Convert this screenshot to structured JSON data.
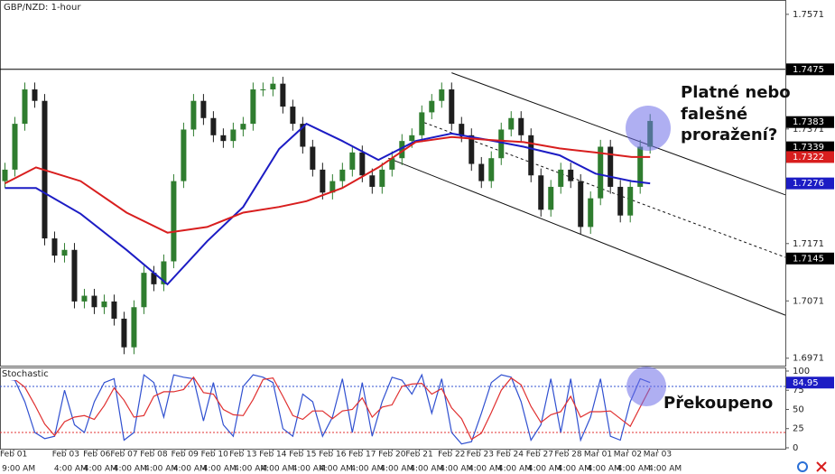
{
  "chart_data": [
    {
      "type": "candlestick",
      "title": "GBP/NZD: 1-hour",
      "up_color": "#2f7d2f",
      "down_color": "#1e1e1e",
      "xlim": [
        0,
        633
      ],
      "ylim": [
        1.6958,
        1.7596
      ],
      "yticks": [
        1.7571,
        1.7371,
        1.7171,
        1.7071,
        1.6971
      ],
      "x": [
        4,
        12,
        20,
        28,
        36,
        44,
        52,
        60,
        68,
        76,
        84,
        92,
        100,
        108,
        116,
        124,
        132,
        140,
        148,
        156,
        164,
        172,
        180,
        188,
        196,
        204,
        212,
        220,
        228,
        236,
        244,
        252,
        260,
        268,
        276,
        284,
        292,
        300,
        308,
        316,
        324,
        332,
        340,
        348,
        356,
        364,
        372,
        380,
        388,
        396,
        404,
        412,
        420,
        428,
        436,
        444,
        452,
        460,
        468,
        476,
        484,
        492,
        500,
        508,
        516,
        524
      ],
      "open": [
        1.728,
        1.73,
        1.738,
        1.744,
        1.742,
        1.718,
        1.715,
        1.716,
        1.707,
        1.708,
        1.706,
        1.707,
        1.704,
        1.699,
        1.706,
        1.712,
        1.71,
        1.714,
        1.728,
        1.737,
        1.742,
        1.739,
        1.736,
        1.735,
        1.737,
        1.738,
        1.744,
        1.744,
        1.745,
        1.741,
        1.738,
        1.734,
        1.73,
        1.726,
        1.728,
        1.73,
        1.733,
        1.729,
        1.727,
        1.73,
        1.732,
        1.735,
        1.736,
        1.74,
        1.742,
        1.744,
        1.738,
        1.736,
        1.731,
        1.728,
        1.732,
        1.737,
        1.739,
        1.736,
        1.729,
        1.723,
        1.727,
        1.73,
        1.728,
        1.72,
        1.725,
        1.734,
        1.727,
        1.722,
        1.727,
        1.734
      ],
      "high": [
        1.7312,
        1.7392,
        1.7452,
        1.7452,
        1.7432,
        1.7192,
        1.7172,
        1.7172,
        1.7092,
        1.7092,
        1.7082,
        1.7082,
        1.7052,
        1.7072,
        1.7132,
        1.7132,
        1.7152,
        1.7292,
        1.7382,
        1.7432,
        1.7432,
        1.7402,
        1.7372,
        1.7382,
        1.7392,
        1.7452,
        1.7452,
        1.7462,
        1.7462,
        1.7422,
        1.7392,
        1.7352,
        1.7312,
        1.7292,
        1.7312,
        1.7342,
        1.7342,
        1.7302,
        1.7312,
        1.7332,
        1.7362,
        1.7372,
        1.7412,
        1.7432,
        1.7452,
        1.7452,
        1.7392,
        1.7372,
        1.7322,
        1.7332,
        1.7382,
        1.7402,
        1.7402,
        1.7372,
        1.7302,
        1.7282,
        1.7312,
        1.7312,
        1.7292,
        1.7262,
        1.7352,
        1.7352,
        1.7282,
        1.7282,
        1.7352,
        1.7397
      ],
      "low": [
        1.7268,
        1.7288,
        1.7368,
        1.7408,
        1.7168,
        1.7138,
        1.7138,
        1.7058,
        1.7058,
        1.7048,
        1.7048,
        1.7028,
        1.6978,
        1.6978,
        1.7048,
        1.7088,
        1.7088,
        1.7128,
        1.7268,
        1.7358,
        1.7378,
        1.7348,
        1.7338,
        1.7338,
        1.7358,
        1.7368,
        1.7428,
        1.7428,
        1.7398,
        1.7368,
        1.7328,
        1.7288,
        1.7248,
        1.7248,
        1.7268,
        1.7288,
        1.7278,
        1.7258,
        1.7258,
        1.7288,
        1.7308,
        1.7338,
        1.7348,
        1.7388,
        1.7408,
        1.7368,
        1.7348,
        1.7298,
        1.7268,
        1.7268,
        1.7308,
        1.7358,
        1.7348,
        1.7278,
        1.7218,
        1.7218,
        1.7258,
        1.7268,
        1.7188,
        1.7188,
        1.7238,
        1.7258,
        1.7208,
        1.7208,
        1.7258,
        1.7328
      ],
      "close": [
        1.73,
        1.738,
        1.744,
        1.742,
        1.718,
        1.715,
        1.716,
        1.707,
        1.708,
        1.706,
        1.707,
        1.704,
        1.699,
        1.706,
        1.712,
        1.71,
        1.714,
        1.728,
        1.737,
        1.742,
        1.739,
        1.736,
        1.735,
        1.737,
        1.738,
        1.744,
        1.744,
        1.745,
        1.741,
        1.738,
        1.734,
        1.73,
        1.726,
        1.728,
        1.73,
        1.733,
        1.729,
        1.727,
        1.73,
        1.732,
        1.735,
        1.736,
        1.74,
        1.742,
        1.744,
        1.738,
        1.736,
        1.731,
        1.728,
        1.732,
        1.737,
        1.739,
        1.736,
        1.729,
        1.723,
        1.727,
        1.73,
        1.728,
        1.72,
        1.725,
        1.734,
        1.727,
        1.722,
        1.727,
        1.734,
        1.7385
      ],
      "series": [
        {
          "color": "#1c1cc4",
          "x": [
            4,
            29,
            65,
            102,
            135,
            167,
            196,
            225,
            247,
            276,
            305,
            335,
            364,
            393,
            422,
            451,
            480,
            509,
            524
          ],
          "values": [
            1.7268,
            1.7268,
            1.7223,
            1.716,
            1.71,
            1.7175,
            1.7235,
            1.7336,
            1.738,
            1.735,
            1.7317,
            1.735,
            1.7363,
            1.7352,
            1.734,
            1.7325,
            1.7293,
            1.728,
            1.7276
          ]
        },
        {
          "color": "#d81e1e",
          "x": [
            4,
            29,
            65,
            102,
            135,
            167,
            196,
            225,
            247,
            276,
            305,
            335,
            364,
            393,
            422,
            451,
            480,
            509,
            524
          ],
          "values": [
            1.7276,
            1.7304,
            1.728,
            1.7225,
            1.719,
            1.72,
            1.7225,
            1.7235,
            1.7245,
            1.7268,
            1.7304,
            1.7348,
            1.7357,
            1.7352,
            1.7348,
            1.7337,
            1.733,
            1.7322,
            1.7322
          ]
        }
      ],
      "hlines": [
        1.7475
      ],
      "trendlines": [
        {
          "x": [
            364,
            633
          ],
          "y": [
            1.7469,
            1.7256
          ],
          "dashed": false
        },
        {
          "x": [
            342,
            633
          ],
          "y": [
            1.7382,
            1.7147
          ],
          "dashed": true
        },
        {
          "x": [
            313,
            633
          ],
          "y": [
            1.732,
            1.7046
          ],
          "dashed": false
        }
      ],
      "price_markers": [
        {
          "value": 1.7475,
          "color": "#000000"
        },
        {
          "value": 1.7383,
          "color": "#000000"
        },
        {
          "value": 1.7339,
          "color": "#000000"
        },
        {
          "value": 1.7322,
          "color": "#d81e1e"
        },
        {
          "value": 1.7276,
          "color": "#1c1cc4"
        },
        {
          "value": 1.7145,
          "color": "#000000"
        }
      ],
      "annotations": [
        "Platné nebo",
        "falešné",
        "proražení?"
      ]
    },
    {
      "type": "line",
      "title": "Stochastic",
      "xlim": [
        0,
        633
      ],
      "ylim": [
        -1.2,
        103.5
      ],
      "yticks": [
        100,
        75,
        50,
        25,
        0
      ],
      "x": [
        4,
        12,
        20,
        28,
        36,
        44,
        52,
        60,
        68,
        76,
        84,
        92,
        100,
        108,
        116,
        124,
        132,
        140,
        148,
        156,
        164,
        172,
        180,
        188,
        196,
        204,
        212,
        220,
        228,
        236,
        244,
        252,
        260,
        268,
        276,
        284,
        292,
        300,
        308,
        316,
        324,
        332,
        340,
        348,
        356,
        364,
        372,
        380,
        388,
        396,
        404,
        412,
        420,
        428,
        436,
        444,
        452,
        460,
        468,
        476,
        484,
        492,
        500,
        508,
        516,
        524
      ],
      "series": [
        {
          "color": "#3050d0",
          "values": [
            90,
            88,
            60,
            20,
            12,
            15,
            75,
            30,
            20,
            60,
            85,
            90,
            10,
            20,
            95,
            85,
            40,
            95,
            92,
            90,
            35,
            85,
            30,
            15,
            80,
            95,
            92,
            85,
            25,
            15,
            70,
            60,
            15,
            40,
            90,
            20,
            85,
            15,
            60,
            92,
            88,
            70,
            95,
            45,
            90,
            20,
            5,
            8,
            45,
            85,
            95,
            92,
            60,
            10,
            30,
            90,
            20,
            90,
            10,
            40,
            90,
            15,
            10,
            60,
            90,
            85
          ]
        },
        {
          "color": "#e03030",
          "values": [
            90,
            89,
            79,
            56,
            31,
            16,
            34,
            40,
            42,
            37,
            55,
            78,
            62,
            40,
            42,
            67,
            73,
            73,
            76,
            92,
            72,
            70,
            50,
            43,
            42,
            63,
            89,
            91,
            67,
            42,
            37,
            48,
            48,
            38,
            48,
            50,
            65,
            40,
            53,
            56,
            80,
            83,
            84,
            70,
            77,
            52,
            38,
            11,
            19,
            46,
            75,
            91,
            82,
            54,
            33,
            43,
            47,
            67,
            40,
            47,
            47,
            48,
            38,
            28,
            53,
            78
          ]
        }
      ],
      "levels": [
        {
          "value": 80,
          "color": "#3050d0"
        },
        {
          "value": 20,
          "color": "#e03030"
        }
      ],
      "price_markers": [
        {
          "value": 84.95,
          "color": "#1c1cc4"
        }
      ],
      "annotations": [
        "Překoupeno"
      ],
      "xticks": [
        {
          "value": 11,
          "label": "Feb 01"
        },
        {
          "value": 53,
          "label": "Feb 03"
        },
        {
          "value": 78,
          "label": "Feb 06"
        },
        {
          "value": 100,
          "label": "Feb 07"
        },
        {
          "value": 124,
          "label": "Feb 08"
        },
        {
          "value": 149,
          "label": "Feb 09"
        },
        {
          "value": 173,
          "label": "Feb 10"
        },
        {
          "value": 196,
          "label": "Feb 13"
        },
        {
          "value": 220,
          "label": "Feb 14"
        },
        {
          "value": 244,
          "label": "Feb 15"
        },
        {
          "value": 268,
          "label": "Feb 16"
        },
        {
          "value": 292,
          "label": "Feb 17"
        },
        {
          "value": 316,
          "label": "Feb 20"
        },
        {
          "value": 338,
          "label": "Feb 21"
        },
        {
          "value": 364,
          "label": "Feb 22"
        },
        {
          "value": 387,
          "label": "Feb 23"
        },
        {
          "value": 411,
          "label": "Feb 24"
        },
        {
          "value": 435,
          "label": "Feb 27"
        },
        {
          "value": 458,
          "label": "Feb 28"
        },
        {
          "value": 482,
          "label": "Mar 01"
        },
        {
          "value": 506,
          "label": "Mar 02"
        },
        {
          "value": 530,
          "label": "Mar 03"
        }
      ],
      "xticks2": [
        {
          "value": 15,
          "label": "9:00 AM"
        },
        {
          "value": 57,
          "label": "4:00 AM"
        },
        {
          "value": 81,
          "label": "4:00 AM"
        },
        {
          "value": 105,
          "label": "4:00 AM"
        },
        {
          "value": 130,
          "label": "4:00 AM"
        },
        {
          "value": 153,
          "label": "4:00 AM"
        },
        {
          "value": 177,
          "label": "4:00 AM"
        },
        {
          "value": 202,
          "label": "4:00 AM"
        },
        {
          "value": 224,
          "label": "4:00 AM"
        },
        {
          "value": 249,
          "label": "4:00 AM"
        },
        {
          "value": 271,
          "label": "4:00 AM"
        },
        {
          "value": 296,
          "label": "4:00 AM"
        },
        {
          "value": 320,
          "label": "4:00 AM"
        },
        {
          "value": 344,
          "label": "4:00 AM"
        },
        {
          "value": 368,
          "label": "4:00 AM"
        },
        {
          "value": 391,
          "label": "4:00 AM"
        },
        {
          "value": 415,
          "label": "4:00 AM"
        },
        {
          "value": 439,
          "label": "4:00 AM"
        },
        {
          "value": 463,
          "label": "4:00 AM"
        },
        {
          "value": 487,
          "label": "4:00 AM"
        },
        {
          "value": 511,
          "label": "4:00 AM"
        },
        {
          "value": 536,
          "label": "4:00 AM"
        }
      ]
    }
  ]
}
